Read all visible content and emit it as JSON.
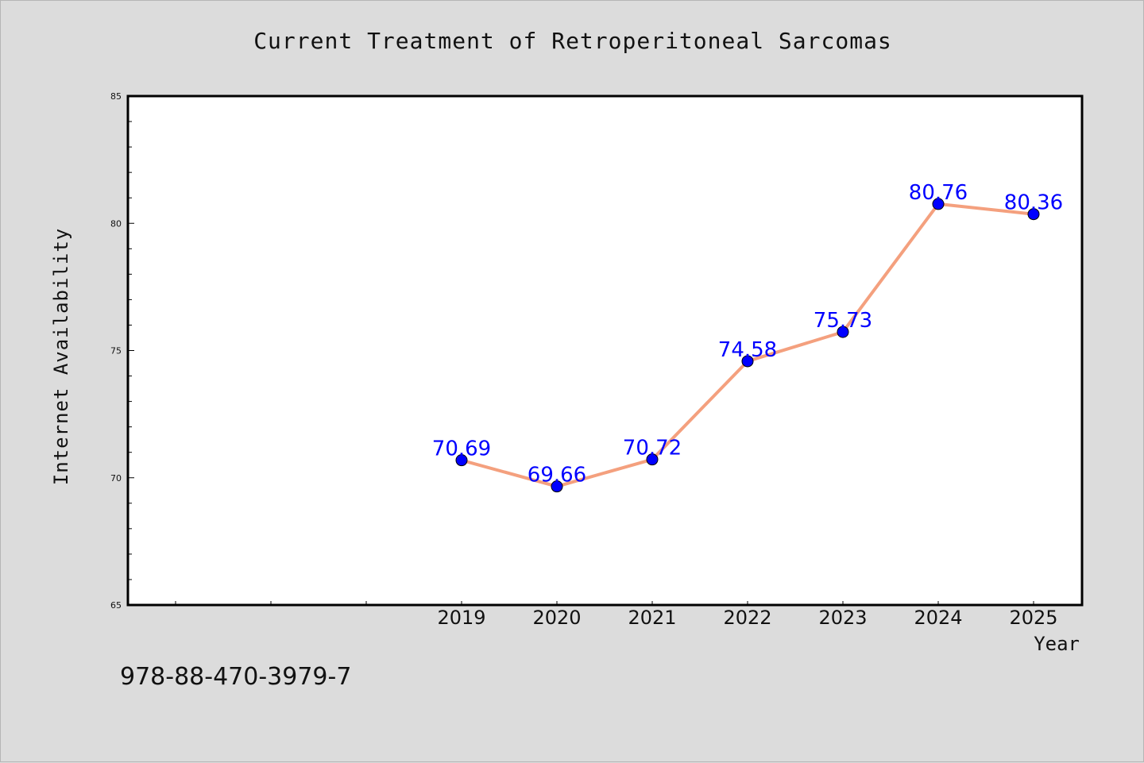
{
  "chart_data": {
    "type": "line",
    "title": "Current Treatment of Retroperitoneal Sarcomas",
    "xlabel": "Year",
    "ylabel": "Internet Availability",
    "categories": [
      "2019",
      "2020",
      "2021",
      "2022",
      "2023",
      "2024",
      "2025"
    ],
    "series": [
      {
        "values": [
          70.69,
          69.66,
          70.72,
          74.58,
          75.73,
          80.76,
          80.36
        ]
      }
    ],
    "data_labels": [
      "70.69",
      "69.66",
      "70.72",
      "74.58",
      "75.73",
      "80.76",
      "80.36"
    ],
    "ylim": [
      65,
      85
    ],
    "yticks": [
      "65",
      "70",
      "75",
      "80",
      "85"
    ],
    "grid": false,
    "legend": "none",
    "colors": {
      "line": "#f4a07e",
      "marker": "#0000ff",
      "label": "#0000ff",
      "axis": "#000000",
      "plot_bg": "#ffffff",
      "page_bg": "#dcdcdc"
    }
  },
  "footer_text": "978-88-470-3979-7"
}
